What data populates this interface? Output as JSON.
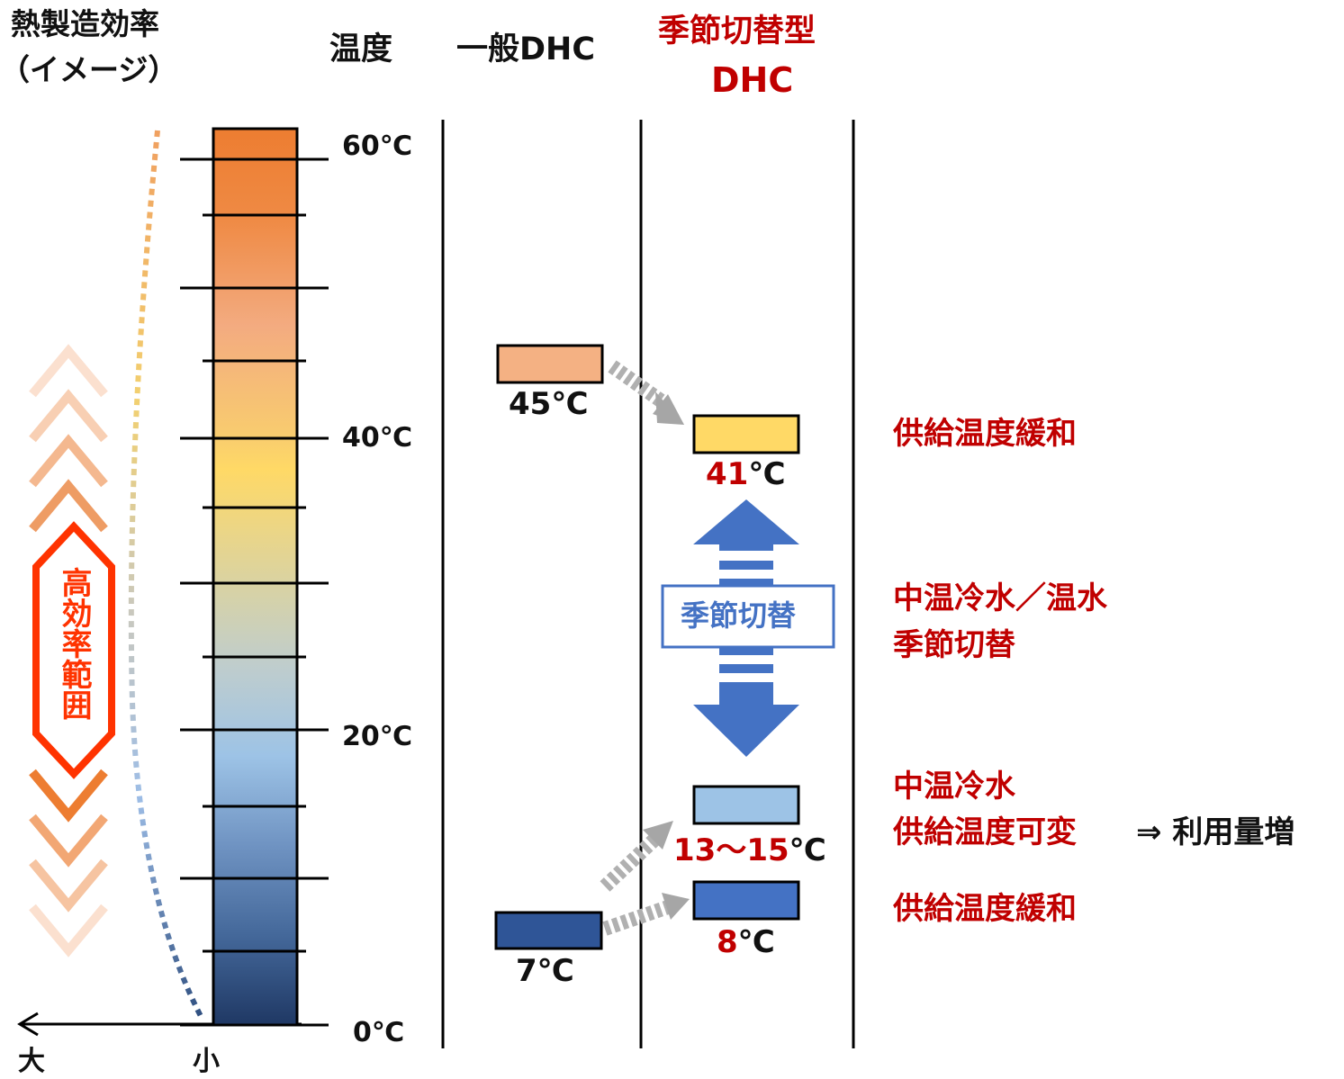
{
  "headers": {
    "efficiency_line1": "熱製造効率",
    "efficiency_line2": "（イメージ）",
    "temperature": "温度",
    "general_dhc": "一般DHC",
    "seasonal_line1": "季節切替型",
    "seasonal_line2": "DHC"
  },
  "scale": {
    "ticks": [
      "60℃",
      "40℃",
      "20℃",
      "0℃"
    ],
    "axis_left": "大",
    "axis_right": "小"
  },
  "high_efficiency_range": "高効率範囲",
  "general_dhc": {
    "hot_temp": "45℃",
    "cold_temp": "7℃"
  },
  "seasonal_dhc": {
    "hot_temp_highlight": "41",
    "hot_temp_unit": "℃",
    "mid_temp_highlight": "13～15",
    "mid_temp_unit": "℃",
    "cold_temp_highlight": "8",
    "cold_temp_unit": "℃",
    "switch_label": "季節切替"
  },
  "notes": {
    "supply_relax_top": "供給温度緩和",
    "mid_line1": "中温冷水／温水",
    "mid_line2": "季節切替",
    "variable_line1": "中温冷水",
    "variable_line2": "供給温度可変",
    "usage_increase": "⇒ 利用量増",
    "supply_relax_bottom": "供給温度緩和"
  },
  "colors": {
    "accent_red": "#c00000",
    "arrow_blue": "#4472c4",
    "hot_orange": "#ed7d31",
    "box_45": "#f4b183",
    "box_41": "#ffd966",
    "box_mid": "#9dc3e6",
    "box_8": "#4472c4",
    "box_7": "#2f5597"
  }
}
